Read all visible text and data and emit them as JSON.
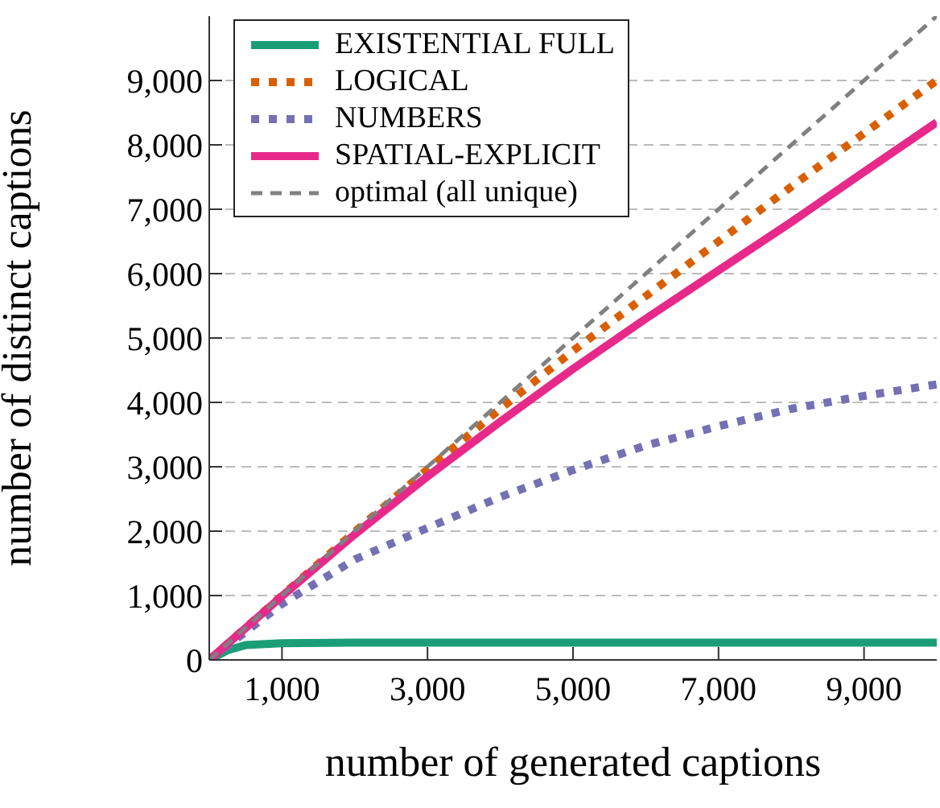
{
  "chart_data": {
    "type": "line",
    "xlabel": "number of generated captions",
    "ylabel": "number of distinct captions",
    "xlim": [
      0,
      10000
    ],
    "ylim": [
      0,
      10000
    ],
    "xticks": [
      {
        "value": 1000,
        "label": "1,000"
      },
      {
        "value": 3000,
        "label": "3,000"
      },
      {
        "value": 5000,
        "label": "5,000"
      },
      {
        "value": 7000,
        "label": "7,000"
      },
      {
        "value": 9000,
        "label": "9,000"
      }
    ],
    "yticks": [
      0,
      {
        "value": 1000,
        "label": "1,000"
      },
      {
        "value": 2000,
        "label": "2,000"
      },
      {
        "value": 3000,
        "label": "3,000"
      },
      {
        "value": 4000,
        "label": "4,000"
      },
      {
        "value": 5000,
        "label": "5,000"
      },
      {
        "value": 6000,
        "label": "6,000"
      },
      {
        "value": 7000,
        "label": "7,000"
      },
      {
        "value": 8000,
        "label": "8,000"
      },
      {
        "value": 9000,
        "label": "9,000"
      }
    ],
    "grid": "y",
    "legend": "top left",
    "marker": "none",
    "series": [
      {
        "name": "EXISTENTIAL FULL",
        "color": "#1b9e77",
        "line_style": "solid",
        "x": [
          0,
          250,
          500,
          1000,
          2000,
          4000,
          6000,
          8000,
          10000
        ],
        "values": [
          0,
          150,
          230,
          260,
          270,
          270,
          270,
          270,
          270
        ]
      },
      {
        "name": "LOGICAL",
        "color": "#d95f02",
        "line_style": "dotted",
        "x": [
          0,
          1000,
          2000,
          3000,
          4000,
          5000,
          6000,
          7000,
          8000,
          9000,
          10000
        ],
        "values": [
          0,
          1000,
          1990,
          2960,
          3900,
          4800,
          5650,
          6500,
          7350,
          8180,
          9000
        ]
      },
      {
        "name": "NUMBERS",
        "color": "#7570b3",
        "line_style": "dotted",
        "x": [
          0,
          1000,
          2000,
          3000,
          4000,
          5000,
          6000,
          7000,
          8000,
          9000,
          10000
        ],
        "values": [
          0,
          870,
          1560,
          2050,
          2530,
          2950,
          3330,
          3630,
          3900,
          4100,
          4280
        ]
      },
      {
        "name": "SPATIAL-EXPLICIT",
        "color": "#e7298a",
        "line_style": "solid",
        "x": [
          0,
          1000,
          2000,
          3000,
          4000,
          5000,
          6000,
          7000,
          8000,
          9000,
          10000
        ],
        "values": [
          0,
          990,
          1950,
          2850,
          3700,
          4520,
          5300,
          6050,
          6800,
          7580,
          8350
        ]
      },
      {
        "name": "optimal (all unique)",
        "color": "#808080",
        "line_style": "dashed",
        "x": [
          0,
          10000
        ],
        "values": [
          0,
          10000
        ]
      }
    ]
  }
}
